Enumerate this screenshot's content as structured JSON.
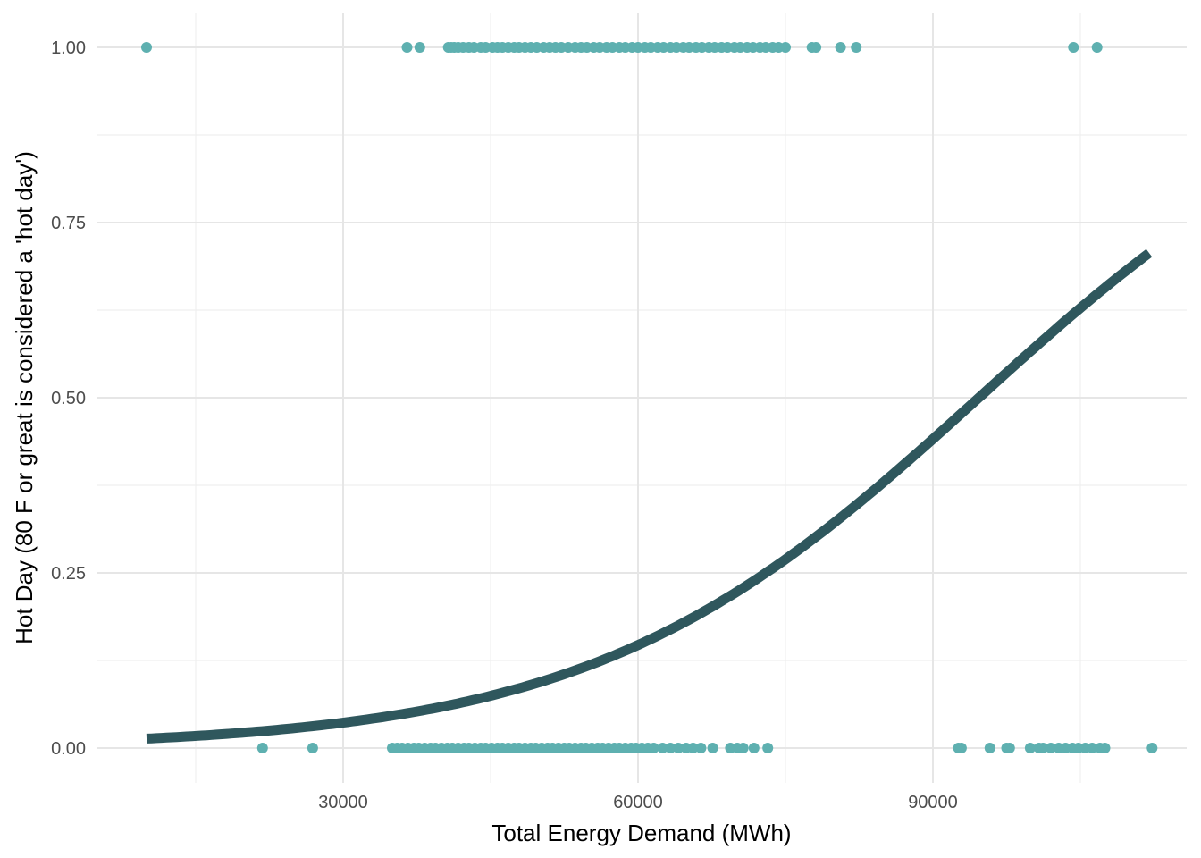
{
  "chart_data": {
    "type": "scatter",
    "title": "",
    "xlabel": "Total Energy Demand (MWh)",
    "ylabel": "Hot Day (80 F or great is considered a 'hot day')",
    "xlim": [
      9000,
      112000
    ],
    "ylim": [
      0,
      1
    ],
    "x_ticks": [
      30000,
      60000,
      90000
    ],
    "x_tick_labels": [
      "30000",
      "60000",
      "90000"
    ],
    "x_minor_ticks": [
      15000,
      45000,
      75000,
      105000
    ],
    "y_ticks": [
      0,
      0.25,
      0.5,
      0.75,
      1
    ],
    "y_tick_labels": [
      "0.00",
      "0.25",
      "0.50",
      "0.75",
      "1.00"
    ],
    "y_minor_ticks": [
      0.125,
      0.375,
      0.625,
      0.875
    ],
    "grid": true,
    "legend": "none",
    "colors": {
      "points": "#5eb0b0",
      "curve": "#2f575d"
    },
    "series": [
      {
        "kind": "points",
        "y": 1,
        "x": [
          10000,
          36500,
          37800,
          40700,
          41000,
          41300,
          41700,
          42200,
          42800,
          43300,
          44000,
          44500,
          45200,
          45700,
          46200,
          46800,
          47400,
          47900,
          48500,
          49100,
          49700,
          50400,
          51000,
          51600,
          52200,
          52900,
          53600,
          54200,
          54800,
          55500,
          56100,
          56800,
          57400,
          58100,
          58700,
          59400,
          60000,
          60700,
          61300,
          62000,
          62600,
          63300,
          63900,
          64600,
          65200,
          65900,
          66500,
          67200,
          67800,
          68500,
          69100,
          69800,
          70400,
          71100,
          71700,
          72400,
          73000,
          73700,
          74300,
          75000,
          77700,
          78100,
          80600,
          82200,
          104300,
          106700
        ]
      },
      {
        "kind": "points",
        "y": 0,
        "x": [
          21800,
          26900,
          35000,
          35500,
          36000,
          36600,
          37200,
          37700,
          38300,
          38900,
          39400,
          40000,
          40600,
          41100,
          41700,
          42300,
          42800,
          43400,
          44000,
          44500,
          45100,
          45700,
          46200,
          46800,
          47400,
          47900,
          48500,
          49100,
          49600,
          50200,
          50800,
          51300,
          51900,
          52500,
          53000,
          53600,
          54200,
          54700,
          55300,
          55900,
          56400,
          57000,
          57600,
          58100,
          58700,
          59300,
          59800,
          60400,
          61000,
          61600,
          62500,
          63300,
          64100,
          64900,
          65600,
          66400,
          67600,
          69400,
          70100,
          70700,
          71800,
          73200,
          92600,
          92900,
          95800,
          97500,
          97800,
          99900,
          100800,
          101200,
          102000,
          102800,
          103500,
          104200,
          104800,
          105500,
          106200,
          107000,
          107500,
          112300
        ]
      },
      {
        "kind": "fitted-curve",
        "model": "logistic",
        "intercept": -4.8,
        "slope": 5.07e-05,
        "x_range": [
          10000,
          112000
        ]
      }
    ]
  }
}
